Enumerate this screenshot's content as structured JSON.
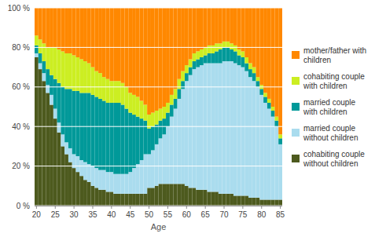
{
  "chart_data": {
    "type": "bar",
    "stacked": true,
    "grid": true,
    "legend": "right",
    "xlabel": "Age",
    "x": [
      20,
      21,
      22,
      23,
      24,
      25,
      26,
      27,
      28,
      29,
      30,
      31,
      32,
      33,
      34,
      35,
      36,
      37,
      38,
      39,
      40,
      41,
      42,
      43,
      44,
      45,
      46,
      47,
      48,
      49,
      50,
      51,
      52,
      53,
      54,
      55,
      56,
      57,
      58,
      59,
      60,
      61,
      62,
      63,
      64,
      65,
      66,
      67,
      68,
      69,
      70,
      71,
      72,
      73,
      74,
      75,
      76,
      77,
      78,
      79,
      80,
      81,
      82,
      83,
      84,
      85
    ],
    "xlim": [
      19.5,
      85.5
    ],
    "xticks": [
      20,
      25,
      30,
      35,
      40,
      45,
      50,
      55,
      60,
      65,
      70,
      75,
      80,
      85
    ],
    "ylim": [
      0,
      100
    ],
    "yticks": [
      {
        "value": 0,
        "label": "0 %"
      },
      {
        "value": 20,
        "label": "20 %"
      },
      {
        "value": 40,
        "label": "40 %"
      },
      {
        "value": 60,
        "label": "60 %"
      },
      {
        "value": 80,
        "label": "80 %"
      },
      {
        "value": 100,
        "label": "100 %"
      }
    ],
    "series": [
      {
        "name": "cohabiting couple\nwithout children",
        "color": "#4d5a1e",
        "values": [
          75,
          69,
          63,
          57,
          51,
          44,
          37,
          30,
          26,
          22,
          19,
          17,
          15,
          13,
          12,
          10,
          9,
          8,
          8,
          7,
          7,
          6,
          6,
          6,
          6,
          6,
          6,
          6,
          6,
          6,
          9,
          9,
          10,
          11,
          11,
          11,
          11,
          11,
          11,
          11,
          10,
          9,
          9,
          8,
          8,
          8,
          7,
          7,
          7,
          6,
          6,
          6,
          6,
          5,
          5,
          5,
          5,
          4,
          4,
          4,
          3,
          3,
          3,
          3,
          3,
          3
        ]
      },
      {
        "name": "married couple\nwithout children",
        "color": "#aadcee",
        "values": [
          2,
          3,
          4,
          4,
          5,
          5,
          5,
          6,
          6,
          7,
          7,
          8,
          8,
          9,
          9,
          10,
          10,
          10,
          10,
          10,
          10,
          10,
          10,
          10,
          10,
          11,
          13,
          15,
          17,
          20,
          17,
          19,
          21,
          23,
          25,
          29,
          34,
          38,
          43,
          48,
          53,
          57,
          60,
          62,
          63,
          64,
          65,
          65,
          65,
          66,
          67,
          67,
          67,
          67,
          66,
          65,
          63,
          61,
          59,
          56,
          53,
          49,
          46,
          42,
          37,
          28
        ]
      },
      {
        "name": "married couple\nwith children",
        "color": "#009999",
        "values": [
          4,
          5,
          6,
          8,
          10,
          15,
          20,
          24,
          27,
          30,
          32,
          33,
          34,
          35,
          36,
          36,
          36,
          36,
          35,
          35,
          35,
          36,
          36,
          35,
          33,
          30,
          27,
          24,
          21,
          17,
          13,
          12,
          10,
          9,
          8,
          7,
          6,
          5,
          5,
          4,
          4,
          4,
          4,
          4,
          4,
          4,
          5,
          5,
          6,
          7,
          7,
          7,
          6,
          6,
          5,
          5,
          4,
          4,
          4,
          3,
          3,
          3,
          3,
          3,
          3,
          3
        ]
      },
      {
        "name": "cohabiting couple\nwith children",
        "color": "#ccee22",
        "values": [
          5,
          7,
          9,
          11,
          14,
          16,
          17,
          18,
          18,
          18,
          18,
          17,
          17,
          16,
          15,
          14,
          13,
          13,
          12,
          12,
          11,
          11,
          11,
          11,
          11,
          10,
          10,
          10,
          9,
          8,
          7,
          7,
          7,
          6,
          6,
          5,
          5,
          5,
          5,
          5,
          4,
          4,
          4,
          4,
          4,
          4,
          4,
          4,
          4,
          3,
          3,
          3,
          3,
          3,
          3,
          3,
          3,
          3,
          3,
          2,
          2,
          2,
          2,
          2,
          2,
          2
        ]
      },
      {
        "name": "mother/father with\nchildren",
        "color": "#ff8800",
        "values": [
          14,
          16,
          18,
          20,
          20,
          20,
          21,
          22,
          23,
          23,
          24,
          25,
          26,
          27,
          28,
          30,
          32,
          33,
          35,
          36,
          37,
          37,
          37,
          38,
          40,
          43,
          44,
          45,
          47,
          49,
          54,
          53,
          52,
          51,
          50,
          48,
          44,
          41,
          36,
          32,
          29,
          26,
          23,
          22,
          21,
          20,
          19,
          19,
          18,
          18,
          17,
          17,
          18,
          19,
          21,
          22,
          25,
          28,
          30,
          35,
          39,
          43,
          46,
          50,
          55,
          64
        ]
      }
    ]
  }
}
